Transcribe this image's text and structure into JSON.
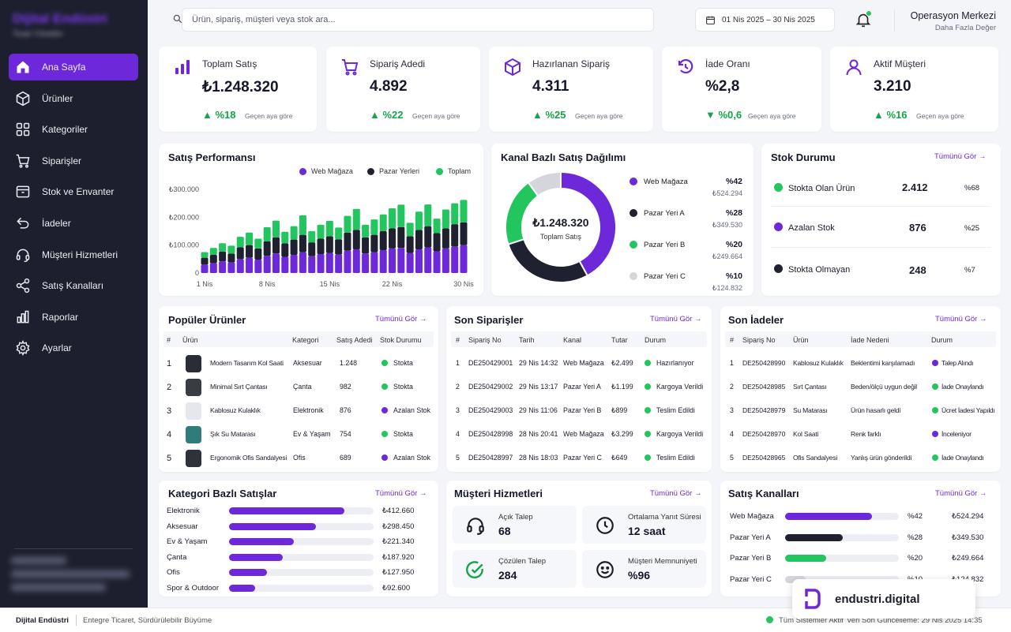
{
  "sidebar": {
    "brand_title": "Dijital",
    "brand_title_accent": "Endüstri",
    "brand_subtitle": "Ticari Yönetim",
    "items": [
      {
        "label": "Ana Sayfa",
        "icon": "home-icon"
      },
      {
        "label": "Ürünler",
        "icon": "box-icon"
      },
      {
        "label": "Kategoriler",
        "icon": "grid-icon"
      },
      {
        "label": "Siparişler",
        "icon": "cart-icon"
      },
      {
        "label": "Stok ve Envanter",
        "icon": "inventory-icon"
      },
      {
        "label": "İadeler",
        "icon": "return-icon"
      },
      {
        "label": "Müşteri Hizmetleri",
        "icon": "headset-icon"
      },
      {
        "label": "Satış Kanalları",
        "icon": "share-icon"
      },
      {
        "label": "Raporlar",
        "icon": "chart-icon"
      },
      {
        "label": "Ayarlar",
        "icon": "gear-icon"
      }
    ]
  },
  "topbar": {
    "search_placeholder": "Ürün, sipariş, müşteri veya stok ara...",
    "date_range": "01 Nis 2025 – 30 Nis 2025",
    "user_name": "Operasyon Merkezi",
    "user_role": "Daha Fazla Değer"
  },
  "kpis": [
    {
      "label": "Toplam Satış",
      "value": "₺1.248.320",
      "delta": "▲ %18",
      "note": "Geçen aya göre",
      "icon": "bar-chart-icon"
    },
    {
      "label": "Sipariş Adedi",
      "value": "4.892",
      "delta": "▲ %22",
      "note": "Geçen aya göre",
      "icon": "cart-icon"
    },
    {
      "label": "Hazırlanan Sipariş",
      "value": "4.311",
      "delta": "▲ %25",
      "note": "Geçen aya göre",
      "icon": "package-icon"
    },
    {
      "label": "İade Oranı",
      "value": "%2,8",
      "delta": "▼ %0,6",
      "note": "Geçen aya göre",
      "icon": "return-icon"
    },
    {
      "label": "Aktif Müşteri",
      "value": "3.210",
      "delta": "▲ %16",
      "note": "Geçen aya göre",
      "icon": "user-icon"
    }
  ],
  "sales_performance": {
    "title": "Satış Performansı",
    "legend": [
      "Web Mağaza",
      "Pazar Yerleri",
      "Toplam"
    ]
  },
  "chart_data": [
    {
      "type": "bar",
      "stacked": true,
      "title": "Satış Performansı",
      "x": [
        1,
        2,
        3,
        4,
        5,
        6,
        7,
        8,
        9,
        10,
        11,
        12,
        13,
        14,
        15,
        16,
        17,
        18,
        19,
        20,
        21,
        22,
        23,
        24,
        25,
        26,
        27,
        28,
        29,
        30
      ],
      "x_tick_labels": [
        "1 Nis",
        "8 Nis",
        "15 Nis",
        "22 Nis",
        "30 Nis"
      ],
      "y_tick_labels": [
        "₺300.000",
        "₺200.000",
        "₺100.000",
        "0"
      ],
      "ylim": [
        0,
        300000
      ],
      "series": [
        {
          "name": "Web Mağaza",
          "color": "#6d28d9",
          "values": [
            30000,
            35000,
            42000,
            38000,
            50000,
            55000,
            48000,
            62000,
            70000,
            58000,
            65000,
            75000,
            60000,
            68000,
            72000,
            66000,
            80000,
            85000,
            70000,
            75000,
            82000,
            88000,
            90000,
            72000,
            85000,
            92000,
            78000,
            88000,
            95000,
            100000
          ]
        },
        {
          "name": "Pazar Yerleri",
          "color": "#1f2130",
          "values": [
            25000,
            30000,
            35000,
            32000,
            42000,
            45000,
            40000,
            52000,
            58000,
            48000,
            55000,
            62000,
            50000,
            55000,
            60000,
            55000,
            65000,
            70000,
            58000,
            62000,
            68000,
            72000,
            75000,
            60000,
            70000,
            76000,
            65000,
            72000,
            80000,
            82000
          ]
        },
        {
          "name": "Toplam",
          "color": "#22c55e",
          "values": [
            20000,
            25000,
            30000,
            28000,
            38000,
            45000,
            35000,
            50000,
            60000,
            42000,
            48000,
            70000,
            40000,
            50000,
            55000,
            42000,
            60000,
            75000,
            45000,
            55000,
            60000,
            72000,
            80000,
            48000,
            65000,
            78000,
            52000,
            68000,
            75000,
            80000
          ]
        }
      ],
      "grid": false,
      "legend": "top-right"
    },
    {
      "type": "pie",
      "donut": true,
      "title": "Kanal Bazlı Satış Dağılımı",
      "center_value": "₺1.248.320",
      "center_label": "Toplam Satış",
      "slices": [
        {
          "name": "Web Mağaza",
          "percent": 42,
          "percent_label": "%42",
          "amount": "₺524.294",
          "color": "#6d28d9"
        },
        {
          "name": "Pazar Yeri A",
          "percent": 28,
          "percent_label": "%28",
          "amount": "₺349.530",
          "color": "#1f2130"
        },
        {
          "name": "Pazar Yeri B",
          "percent": 20,
          "percent_label": "%20",
          "amount": "₺249.664",
          "color": "#22c55e"
        },
        {
          "name": "Pazar Yeri C",
          "percent": 10,
          "percent_label": "%10",
          "amount": "₺124.832",
          "color": "#d4d6dc"
        }
      ]
    }
  ],
  "stock": {
    "title": "Stok Durumu",
    "see_all": "Tümünü Gör →",
    "rows": [
      {
        "label": "Stokta Olan Ürün",
        "value": "2.412",
        "percent": "%68",
        "color": "#22c55e"
      },
      {
        "label": "Azalan Stok",
        "value": "876",
        "percent": "%25",
        "color": "#6d28d9"
      },
      {
        "label": "Stokta Olmayan",
        "value": "248",
        "percent": "%7",
        "color": "#1f2130"
      }
    ]
  },
  "popular_products": {
    "title": "Popüler Ürünler",
    "see_all": "Tümünü Gör →",
    "headers": [
      "#",
      "Ürün",
      "Kategori",
      "Satış Adedi",
      "Stok Durumu"
    ],
    "rows": [
      {
        "n": "1",
        "name": "Modern Tasarım Kol Saati",
        "category": "Aksesuar",
        "qty": "1.248",
        "status": "Stokta",
        "color": "#22c55e"
      },
      {
        "n": "2",
        "name": "Minimal Sırt Çantası",
        "category": "Çanta",
        "qty": "982",
        "status": "Stokta",
        "color": "#22c55e"
      },
      {
        "n": "3",
        "name": "Kablosuz Kulaklık",
        "category": "Elektronik",
        "qty": "876",
        "status": "Azalan Stok",
        "color": "#6d28d9"
      },
      {
        "n": "4",
        "name": "Şık Su Matarası",
        "category": "Ev & Yaşam",
        "qty": "754",
        "status": "Stokta",
        "color": "#22c55e"
      },
      {
        "n": "5",
        "name": "Ergonomik Ofis Sandalyesi",
        "category": "Ofis",
        "qty": "689",
        "status": "Azalan Stok",
        "color": "#6d28d9"
      }
    ]
  },
  "recent_orders": {
    "title": "Son Siparişler",
    "see_all": "Tümünü Gör →",
    "headers": [
      "#",
      "Sipariş No",
      "Tarih",
      "Kanal",
      "Tutar",
      "Durum"
    ],
    "rows": [
      {
        "n": "1",
        "no": "DE250429001",
        "date": "29 Nis 14:32",
        "channel": "Web Mağaza",
        "amount": "₺2.499",
        "status": "Hazırlanıyor",
        "color": "#22c55e"
      },
      {
        "n": "2",
        "no": "DE250429002",
        "date": "29 Nis 13:17",
        "channel": "Pazar Yeri A",
        "amount": "₺1.199",
        "status": "Kargoya Verildi",
        "color": "#22c55e"
      },
      {
        "n": "3",
        "no": "DE250429003",
        "date": "29 Nis 11:06",
        "channel": "Pazar Yeri B",
        "amount": "₺899",
        "status": "Teslim Edildi",
        "color": "#22c55e"
      },
      {
        "n": "4",
        "no": "DE250428998",
        "date": "28 Nis 20:41",
        "channel": "Web Mağaza",
        "amount": "₺3.299",
        "status": "Kargoya Verildi",
        "color": "#22c55e"
      },
      {
        "n": "5",
        "no": "DE250428997",
        "date": "28 Nis 18:03",
        "channel": "Pazar Yeri C",
        "amount": "₺649",
        "status": "Teslim Edildi",
        "color": "#22c55e"
      }
    ]
  },
  "recent_returns": {
    "title": "Son İadeler",
    "see_all": "Tümünü Gör →",
    "headers": [
      "#",
      "Sipariş No",
      "Ürün",
      "İade Nedeni",
      "Durum"
    ],
    "rows": [
      {
        "n": "1",
        "no": "DE250428990",
        "product": "Kablosuz Kulaklık",
        "reason": "Beklentimi karşılamadı",
        "status": "Talep Alındı",
        "color": "#6d28d9"
      },
      {
        "n": "2",
        "no": "DE250428985",
        "product": "Sırt Çantası",
        "reason": "Beden/ölçü uygun değil",
        "status": "İade Onaylandı",
        "color": "#22c55e"
      },
      {
        "n": "3",
        "no": "DE250428979",
        "product": "Su Matarası",
        "reason": "Ürün hasarlı geldi",
        "status": "Ücret İadesi Yapıldı",
        "color": "#22c55e"
      },
      {
        "n": "4",
        "no": "DE250428970",
        "product": "Kol Saati",
        "reason": "Renk farklı",
        "status": "İnceleniyor",
        "color": "#6d28d9"
      },
      {
        "n": "5",
        "no": "DE250428965",
        "product": "Ofis Sandalyesi",
        "reason": "Yanlış ürün gönderildi",
        "status": "İade Onaylandı",
        "color": "#22c55e"
      }
    ]
  },
  "category_sales": {
    "title": "Kategori Bazlı Satışlar",
    "see_all": "Tümünü Gör →",
    "rows": [
      {
        "label": "Elektronik",
        "value": "₺412.660",
        "fraction": 0.8
      },
      {
        "label": "Aksesuar",
        "value": "₺298.450",
        "fraction": 0.6
      },
      {
        "label": "Ev & Yaşam",
        "value": "₺221.340",
        "fraction": 0.45
      },
      {
        "label": "Çanta",
        "value": "₺187.920",
        "fraction": 0.37
      },
      {
        "label": "Ofis",
        "value": "₺127.950",
        "fraction": 0.26
      },
      {
        "label": "Spor & Outdoor",
        "value": "₺92.600",
        "fraction": 0.18
      }
    ]
  },
  "customer_service": {
    "title": "Müşteri Hizmetleri",
    "see_all": "Tümünü Gör →",
    "items": [
      {
        "label": "Açık Talep",
        "value": "68",
        "icon": "headset-icon"
      },
      {
        "label": "Ortalama Yanıt Süresi",
        "value": "12 saat",
        "icon": "clock-icon"
      },
      {
        "label": "Çözülen Talep",
        "value": "284",
        "icon": "check-circle-icon"
      },
      {
        "label": "Müşteri Memnuniyeti",
        "value": "%96",
        "icon": "smile-icon"
      }
    ]
  },
  "sales_channels": {
    "title": "Satış Kanalları",
    "see_all": "Tümünü Gör →",
    "rows": [
      {
        "label": "Web Mağaza",
        "percent": "%42",
        "amount": "₺524.294",
        "fraction": 0.42,
        "color": "#6d28d9"
      },
      {
        "label": "Pazar Yeri A",
        "percent": "%28",
        "amount": "₺349.530",
        "fraction": 0.28,
        "color": "#1f2130"
      },
      {
        "label": "Pazar Yeri B",
        "percent": "%20",
        "amount": "₺249.664",
        "fraction": 0.2,
        "color": "#22c55e"
      },
      {
        "label": "Pazar Yeri C",
        "percent": "%10",
        "amount": "₺124.832",
        "fraction": 0.1,
        "color": "#d4d6dc"
      }
    ]
  },
  "footer": {
    "brand": "Dijital Endüstri",
    "tagline": "Entegre Ticaret, Sürdürülebilir Büyüme",
    "status": "Tüm Sistemler Aktif",
    "updated": "Veri Son Güncelleme: 29 Nis 2025 14:35"
  },
  "logo_badge": {
    "text": "endustri.digital"
  }
}
